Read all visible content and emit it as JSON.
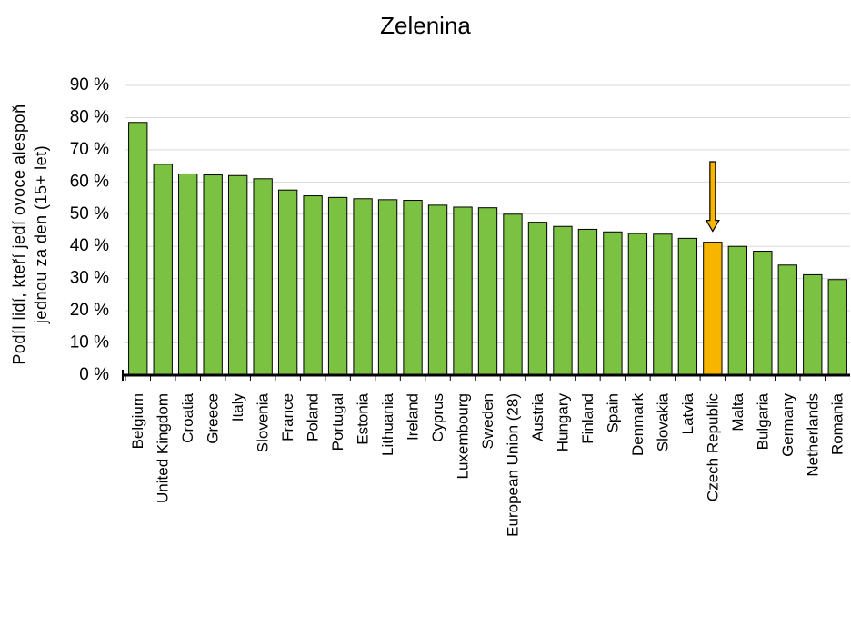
{
  "chart_data": {
    "type": "bar",
    "title": "Zelenina",
    "ylabel": [
      "Podíl lidí, kteří jedí ovoce alespoň",
      "jednou za den (15+ let)"
    ],
    "categories": [
      "Belgium",
      "United Kingdom",
      "Croatia",
      "Greece",
      "Italy",
      "Slovenia",
      "France",
      "Poland",
      "Portugal",
      "Estonia",
      "Lithuania",
      "Ireland",
      "Cyprus",
      "Luxembourg",
      "Sweden",
      "European Union (28)",
      "Austria",
      "Hungary",
      "Finland",
      "Spain",
      "Denmark",
      "Slovakia",
      "Latvia",
      "Czech Republic",
      "Malta",
      "Bulgaria",
      "Germany",
      "Netherlands",
      "Romania"
    ],
    "values": [
      78.5,
      65.5,
      62.5,
      62.2,
      62,
      61,
      57.5,
      55.7,
      55.2,
      54.8,
      54.5,
      54.3,
      52.8,
      52.2,
      52,
      50,
      47.5,
      46.2,
      45.3,
      44.5,
      44,
      43.8,
      42.5,
      41.3,
      40,
      38.5,
      34.2,
      31.2,
      29.7
    ],
    "colors": [
      "#7cc242",
      "#7cc242",
      "#7cc242",
      "#7cc242",
      "#7cc242",
      "#7cc242",
      "#7cc242",
      "#7cc242",
      "#7cc242",
      "#7cc242",
      "#7cc242",
      "#7cc242",
      "#7cc242",
      "#7cc242",
      "#7cc242",
      "#7cc242",
      "#7cc242",
      "#7cc242",
      "#7cc242",
      "#7cc242",
      "#7cc242",
      "#7cc242",
      "#7cc242",
      "#f7b500",
      "#7cc242",
      "#7cc242",
      "#7cc242",
      "#7cc242",
      "#7cc242"
    ],
    "ylim": [
      0,
      90
    ],
    "yticks": [
      {
        "value": 0,
        "label": "0 %"
      },
      {
        "value": 10,
        "label": "10 %"
      },
      {
        "value": 20,
        "label": "20 %"
      },
      {
        "value": 30,
        "label": "30 %"
      },
      {
        "value": 40,
        "label": "40 %"
      },
      {
        "value": 50,
        "label": "50 %"
      },
      {
        "value": 60,
        "label": "60 %"
      },
      {
        "value": 70,
        "label": "70 %"
      },
      {
        "value": 80,
        "label": "80 %"
      },
      {
        "value": 90,
        "label": "90 %"
      }
    ],
    "grid": true
  }
}
